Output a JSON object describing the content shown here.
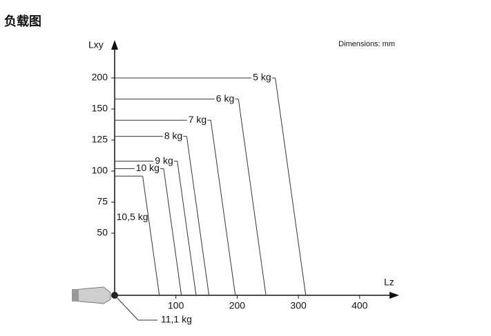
{
  "title": "负载图",
  "chart_data": {
    "type": "load",
    "annotation": "Dimensions: mm",
    "x_label": "Lz",
    "y_label": "Lxy",
    "xlim": [
      0,
      460
    ],
    "xticks": [
      100,
      200,
      300,
      400
    ],
    "ylim": [
      0,
      255
    ],
    "yticks": [
      50,
      75,
      100,
      125,
      150,
      200
    ],
    "series": [
      {
        "name": "5 kg",
        "lxy": 200,
        "lz": 312
      },
      {
        "name": "6 kg",
        "lxy": 166,
        "lz": 247
      },
      {
        "name": "7 kg",
        "lxy": 141,
        "lz": 197
      },
      {
        "name": "8 kg",
        "lxy": 128,
        "lz": 154
      },
      {
        "name": "9 kg",
        "lxy": 108,
        "lz": 133
      },
      {
        "name": "10 kg",
        "lxy": 102,
        "lz": 109
      },
      {
        "name": "10,5 kg",
        "lxy": 96,
        "lz": 73
      }
    ],
    "origin_label": "11,1 kg"
  }
}
